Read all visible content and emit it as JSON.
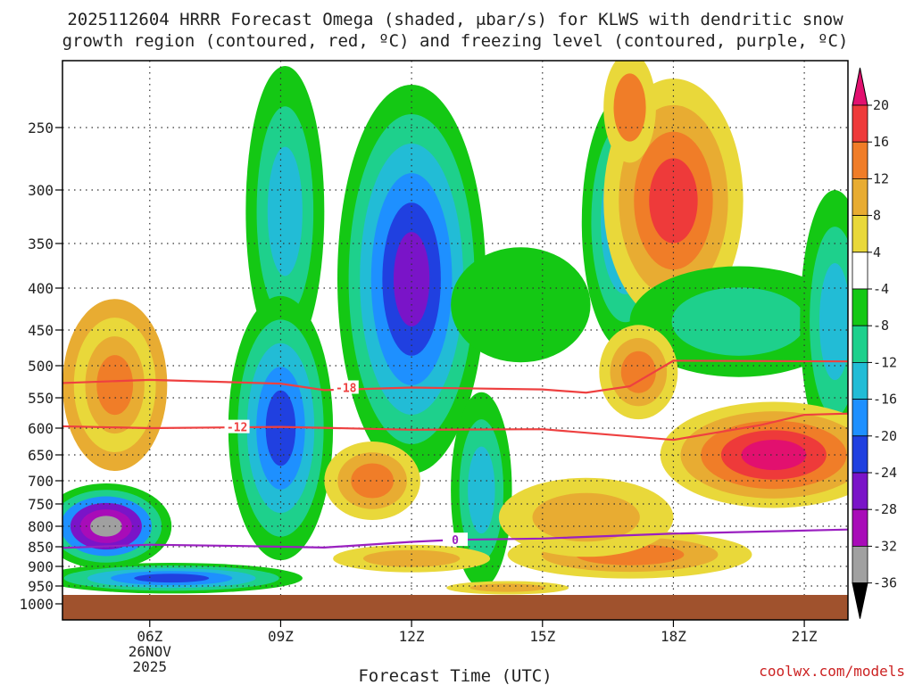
{
  "chart_data": {
    "type": "heatmap",
    "title_line1": "2025112604 HRRR Forecast Omega (shaded, μbar/s) for KLWS with dendritic snow",
    "title_line2": "growth region (contoured, red, ºC) and freezing level (contoured, purple, ºC)",
    "xlabel": "Forecast Time (UTC)",
    "ylabel": "",
    "credit": "coolwx.com/models",
    "x_ticks": [
      {
        "hour": 6,
        "label": "06Z",
        "date": "26NOV",
        "year": "2025"
      },
      {
        "hour": 9,
        "label": "09Z"
      },
      {
        "hour": 12,
        "label": "12Z"
      },
      {
        "hour": 15,
        "label": "15Z"
      },
      {
        "hour": 18,
        "label": "18Z"
      },
      {
        "hour": 21,
        "label": "21Z"
      }
    ],
    "xlim": [
      4,
      22
    ],
    "y_ticks": [
      250,
      300,
      350,
      400,
      450,
      500,
      550,
      600,
      650,
      700,
      750,
      800,
      850,
      900,
      950,
      1000
    ],
    "ylim_hpa": [
      200,
      1000
    ],
    "ground_level_hpa": 975,
    "colorbar": {
      "labels": [
        "20",
        "16",
        "12",
        "8",
        "4",
        "-4",
        "-8",
        "-12",
        "-16",
        "-20",
        "-24",
        "-28",
        "-32",
        "-36"
      ],
      "colors": [
        "#e2106f",
        "#ee3a3a",
        "#f07d28",
        "#e8ac32",
        "#e9d83a",
        "#ffffff",
        "#14c814",
        "#1ed08c",
        "#22bcd6",
        "#1e90ff",
        "#2040e0",
        "#7a14c8",
        "#a80cb8",
        "#a0a0a0",
        "#000000"
      ]
    },
    "contours": {
      "dgz": [
        {
          "label": "-18",
          "color": "#ee4040",
          "points": [
            [
              4,
              527
            ],
            [
              6,
              522
            ],
            [
              9,
              528
            ],
            [
              10,
              538
            ],
            [
              12,
              534
            ],
            [
              15,
              537
            ],
            [
              16,
              542
            ],
            [
              17,
              532
            ],
            [
              18,
              493
            ],
            [
              22,
              494
            ]
          ]
        },
        {
          "label": "-12",
          "color": "#ee4040",
          "points": [
            [
              4,
              597
            ],
            [
              6,
              600
            ],
            [
              9,
              598
            ],
            [
              12,
              603
            ],
            [
              15,
              602
            ],
            [
              18,
              622
            ],
            [
              20,
              595
            ],
            [
              21,
              578
            ],
            [
              22,
              576
            ]
          ]
        }
      ],
      "freezing": {
        "label": "0",
        "color": "#9a20c0",
        "points": [
          [
            4,
            853
          ],
          [
            6,
            845
          ],
          [
            8,
            848
          ],
          [
            10,
            852
          ],
          [
            12,
            838
          ],
          [
            13,
            833
          ],
          [
            15,
            830
          ],
          [
            18,
            818
          ],
          [
            22,
            808
          ]
        ]
      }
    },
    "blobs": [
      {
        "hour": 5.2,
        "hpa": 530,
        "rx": 1.2,
        "ry": 130,
        "levels": [
          8,
          4,
          2,
          1
        ]
      },
      {
        "hour": 5.0,
        "hpa": 800,
        "rx": 1.5,
        "ry": 100,
        "levels": [
          -8,
          -12,
          -20,
          -28,
          -32,
          -36
        ]
      },
      {
        "hour": 6.5,
        "hpa": 930,
        "rx": 3.0,
        "ry": 40,
        "levels": [
          -8,
          -12,
          -16,
          -20,
          -24
        ]
      },
      {
        "hour": 9.1,
        "hpa": 320,
        "rx": 0.9,
        "ry": 160,
        "levels": [
          -8,
          -12,
          -16
        ]
      },
      {
        "hour": 9.0,
        "hpa": 600,
        "rx": 1.2,
        "ry": 220,
        "levels": [
          -8,
          -12,
          -16,
          -20,
          -24
        ]
      },
      {
        "hour": 12.0,
        "hpa": 390,
        "rx": 1.7,
        "ry": 250,
        "levels": [
          -8,
          -12,
          -16,
          -20,
          -24,
          -28
        ]
      },
      {
        "hour": 11.1,
        "hpa": 700,
        "rx": 1.1,
        "ry": 80,
        "levels": [
          4,
          8,
          12
        ]
      },
      {
        "hour": 13.6,
        "hpa": 720,
        "rx": 0.7,
        "ry": 200,
        "levels": [
          -8,
          -12,
          -16
        ]
      },
      {
        "hour": 14.5,
        "hpa": 420,
        "rx": 1.6,
        "ry": 70,
        "levels": [
          -8
        ]
      },
      {
        "hour": 16.9,
        "hpa": 330,
        "rx": 1.0,
        "ry": 120,
        "levels": [
          -8,
          -12,
          -16,
          -20
        ]
      },
      {
        "hour": 18.0,
        "hpa": 310,
        "rx": 1.6,
        "ry": 110,
        "levels": [
          4,
          8,
          12,
          16
        ]
      },
      {
        "hour": 17.0,
        "hpa": 235,
        "rx": 0.6,
        "ry": 50,
        "levels": [
          4,
          12
        ]
      },
      {
        "hour": 19.5,
        "hpa": 440,
        "rx": 2.5,
        "ry": 70,
        "levels": [
          -8,
          -12
        ]
      },
      {
        "hour": 21.7,
        "hpa": 440,
        "rx": 0.8,
        "ry": 160,
        "levels": [
          -8,
          -12,
          -16
        ]
      },
      {
        "hour": 17.2,
        "hpa": 510,
        "rx": 0.9,
        "ry": 70,
        "levels": [
          4,
          8,
          12
        ]
      },
      {
        "hour": 20.3,
        "hpa": 650,
        "rx": 2.6,
        "ry": 100,
        "levels": [
          4,
          8,
          12,
          16,
          20
        ]
      },
      {
        "hour": 17.0,
        "hpa": 870,
        "rx": 2.8,
        "ry": 60,
        "levels": [
          4,
          8,
          12
        ]
      },
      {
        "hour": 12.0,
        "hpa": 880,
        "rx": 1.8,
        "ry": 35,
        "levels": [
          4,
          8
        ]
      },
      {
        "hour": 16.0,
        "hpa": 780,
        "rx": 2.0,
        "ry": 90,
        "levels": [
          4,
          8
        ]
      },
      {
        "hour": 14.2,
        "hpa": 955,
        "rx": 1.4,
        "ry": 18,
        "levels": [
          4,
          8
        ]
      }
    ]
  }
}
